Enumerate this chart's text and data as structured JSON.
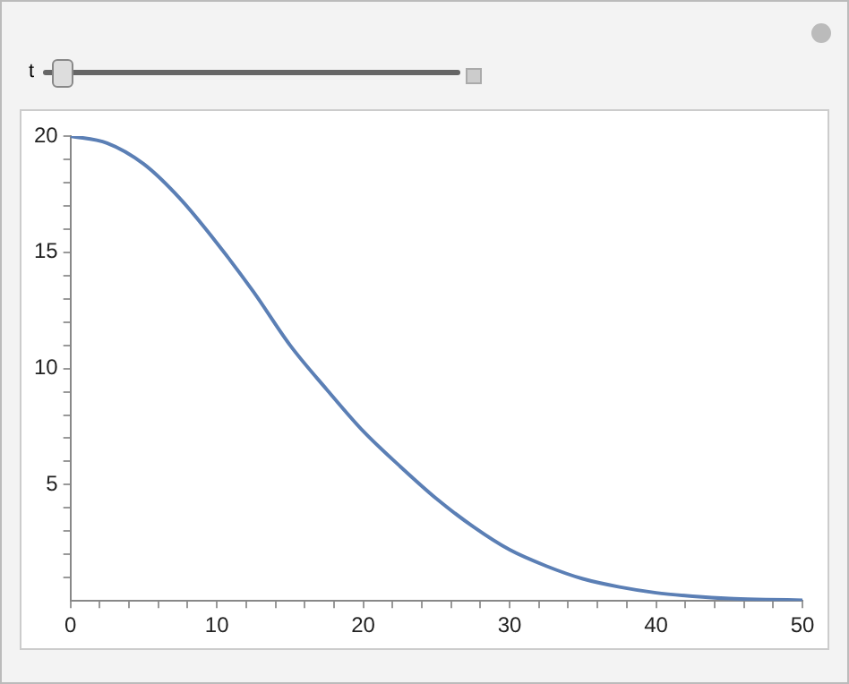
{
  "chart_data": {
    "type": "line",
    "annotations": [
      "t"
    ],
    "x": [
      0,
      2.5,
      5,
      7.5,
      10,
      12.5,
      15,
      17.5,
      20,
      22.5,
      25,
      27.5,
      30,
      32.5,
      35,
      37.5,
      40,
      42.5,
      45,
      47.5,
      50
    ],
    "series": [
      {
        "color": "#5b7fb5",
        "values": [
          20,
          19.7,
          18.8,
          17.3,
          15.4,
          13.3,
          11.0,
          9.1,
          7.3,
          5.8,
          4.4,
          3.2,
          2.2,
          1.5,
          0.95,
          0.6,
          0.35,
          0.2,
          0.1,
          0.06,
          0.03
        ]
      }
    ],
    "xlim": [
      0,
      50
    ],
    "xticks": [
      0,
      {
        "value": 2,
        "label": null
      },
      {
        "value": 4,
        "label": null
      },
      {
        "value": 6,
        "label": null
      },
      {
        "value": 8,
        "label": null
      },
      10,
      {
        "value": 12,
        "label": null
      },
      {
        "value": 14,
        "label": null
      },
      {
        "value": 16,
        "label": null
      },
      {
        "value": 18,
        "label": null
      },
      20,
      {
        "value": 22,
        "label": null
      },
      {
        "value": 24,
        "label": null
      },
      {
        "value": 26,
        "label": null
      },
      {
        "value": 28,
        "label": null
      },
      30,
      {
        "value": 32,
        "label": null
      },
      {
        "value": 34,
        "label": null
      },
      {
        "value": 36,
        "label": null
      },
      {
        "value": 38,
        "label": null
      },
      40,
      {
        "value": 42,
        "label": null
      },
      {
        "value": 44,
        "label": null
      },
      {
        "value": 46,
        "label": null
      },
      {
        "value": 48,
        "label": null
      },
      50
    ],
    "ylim": [
      0,
      20
    ],
    "yticks": [
      {
        "value": 1,
        "label": null
      },
      {
        "value": 2,
        "label": null
      },
      {
        "value": 3,
        "label": null
      },
      {
        "value": 4,
        "label": null
      },
      5,
      {
        "value": 6,
        "label": null
      },
      {
        "value": 7,
        "label": null
      },
      {
        "value": 8,
        "label": null
      },
      {
        "value": 9,
        "label": null
      },
      10,
      {
        "value": 11,
        "label": null
      },
      {
        "value": 12,
        "label": null
      },
      {
        "value": 13,
        "label": null
      },
      {
        "value": 14,
        "label": null
      },
      15,
      {
        "value": 16,
        "label": null
      },
      {
        "value": 17,
        "label": null
      },
      {
        "value": 18,
        "label": null
      },
      {
        "value": 19,
        "label": null
      },
      20
    ],
    "marker": "none",
    "line_style": "solid",
    "legend": false
  }
}
